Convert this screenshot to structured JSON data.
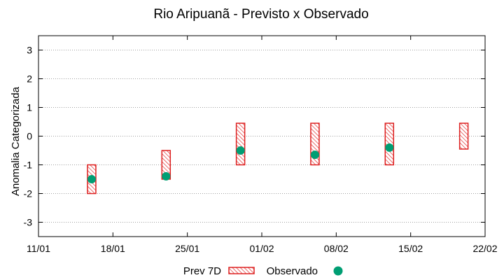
{
  "chart_data": {
    "type": "scatter",
    "title": "Rio Aripuanã - Previsto x Observado",
    "xlabel": "",
    "ylabel": "Anomalia Categorizada",
    "x_start_day": 0,
    "x_end_day": 42,
    "x_ticks": [
      {
        "label": "11/01",
        "day": 0
      },
      {
        "label": "18/01",
        "day": 7
      },
      {
        "label": "25/01",
        "day": 14
      },
      {
        "label": "01/02",
        "day": 21
      },
      {
        "label": "08/02",
        "day": 28
      },
      {
        "label": "15/02",
        "day": 35
      },
      {
        "label": "22/02",
        "day": 42
      }
    ],
    "ylim": [
      -3.5,
      3.5
    ],
    "y_ticks": [
      -3,
      -2,
      -1,
      0,
      1,
      2,
      3
    ],
    "grid": true,
    "legend_position": "bottom",
    "series": [
      {
        "name": "Prev 7D",
        "kind": "range-box",
        "color": "#dd2020",
        "points": [
          {
            "day": 5,
            "low": -2.0,
            "high": -1.0
          },
          {
            "day": 12,
            "low": -1.5,
            "high": -0.5
          },
          {
            "day": 19,
            "low": -1.0,
            "high": 0.45
          },
          {
            "day": 26,
            "low": -1.0,
            "high": 0.45
          },
          {
            "day": 33,
            "low": -1.0,
            "high": 0.45
          },
          {
            "day": 40,
            "low": -0.45,
            "high": 0.45
          }
        ]
      },
      {
        "name": "Observado",
        "kind": "point",
        "color": "#009e73",
        "points": [
          {
            "day": 5,
            "value": -1.5
          },
          {
            "day": 12,
            "value": -1.4
          },
          {
            "day": 19,
            "value": -0.5
          },
          {
            "day": 26,
            "value": -0.65
          },
          {
            "day": 33,
            "value": -0.4
          }
        ]
      }
    ]
  }
}
